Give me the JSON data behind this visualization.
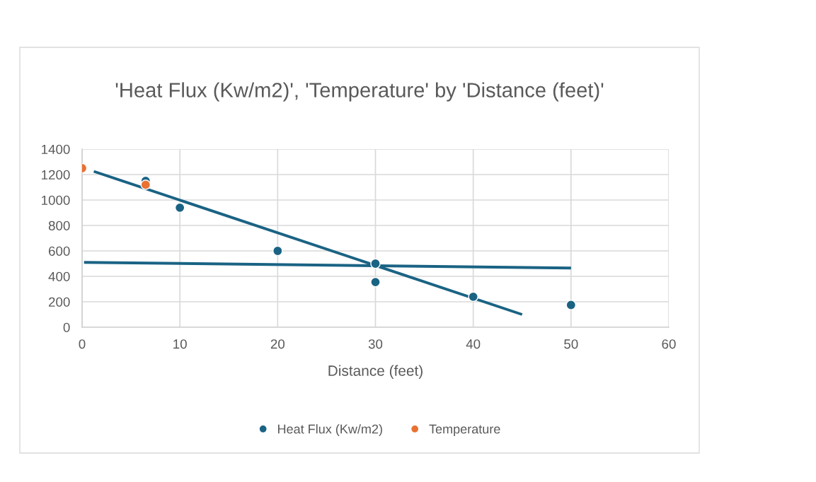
{
  "chart_data": {
    "type": "scatter",
    "title": "'Heat Flux (Kw/m2)', 'Temperature' by 'Distance (feet)'",
    "xlabel": "Distance (feet)",
    "series": [
      {
        "name": "Heat Flux (Kw/m2)",
        "color": "#1a6384",
        "x": [
          6.5,
          10,
          20,
          30,
          30,
          40,
          50
        ],
        "values": [
          1150,
          940,
          600,
          355,
          500,
          240,
          175
        ]
      },
      {
        "name": "Temperature",
        "color": "#e97132",
        "x": [
          0,
          6.5
        ],
        "values": [
          1250,
          1120
        ]
      },
      {
        "type": "line",
        "marker": "none",
        "color": "#1a6384",
        "x": [
          1.2,
          45
        ],
        "values": [
          1225,
          100
        ]
      },
      {
        "type": "line",
        "marker": "none",
        "color": "#1a6384",
        "x": [
          0.2,
          50
        ],
        "values": [
          510,
          465
        ]
      }
    ],
    "xlim": [
      0,
      60
    ],
    "xticks": [
      0,
      10,
      20,
      30,
      40,
      50,
      60
    ],
    "ylim": [
      0,
      1400
    ],
    "yticks": [
      0,
      200,
      400,
      600,
      800,
      1000,
      1200,
      1400
    ],
    "grid": true,
    "legend": "bottom",
    "marker": "circle"
  }
}
